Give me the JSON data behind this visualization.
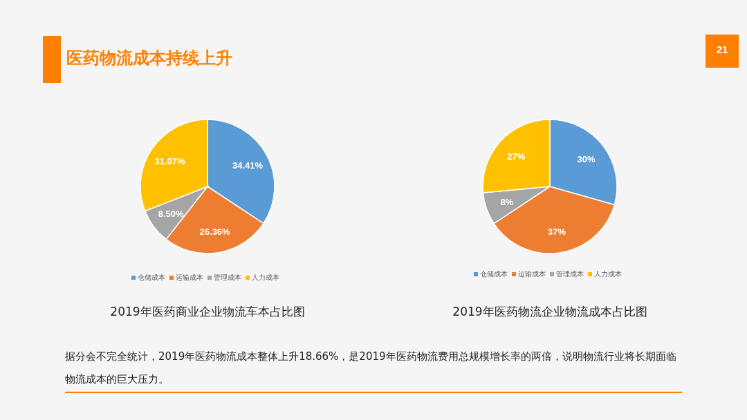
{
  "chart_data": [
    {
      "type": "pie",
      "title": "2019年医药商业企业物流车本占比图",
      "categories": [
        "仓储成本",
        "运输成本",
        "管理成本",
        "人力成本"
      ],
      "values": [
        34.41,
        26.36,
        8.5,
        31.07
      ],
      "value_labels": [
        "34.41%",
        "26.36%",
        "8.50%",
        "31.07%"
      ],
      "colors": [
        "#5b9bd5",
        "#ed7d31",
        "#a5a5a5",
        "#ffc000"
      ],
      "legend": "bottom",
      "annotations": [
        "医药物流成本持续上升",
        "21",
        "据分会不完全统计，2019年医药物流成本整体上升18.66%，是2019年医药物流费用总规模增长率的两倍，说明物流行业将长期面临物流成本的巨大压力。"
      ]
    },
    {
      "type": "pie",
      "title": "2019年医药物流企业物流成本占比图",
      "categories": [
        "仓储成本",
        "运输成本",
        "管理成本",
        "人力成本"
      ],
      "values": [
        30,
        37,
        8,
        27
      ],
      "value_labels": [
        "30%",
        "37%",
        "8%",
        "27%"
      ],
      "colors": [
        "#5b9bd5",
        "#ed7d31",
        "#a5a5a5",
        "#ffc000"
      ],
      "legend": "bottom"
    }
  ]
}
